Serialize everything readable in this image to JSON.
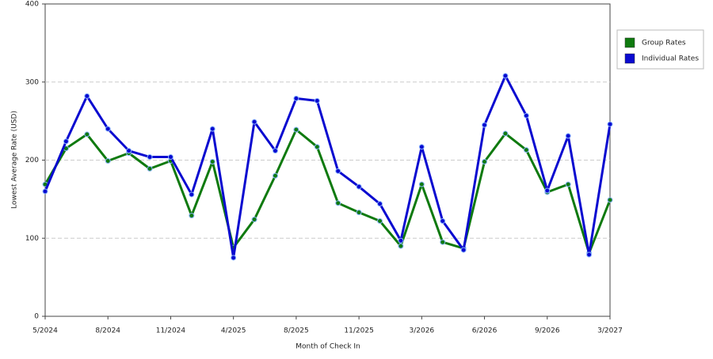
{
  "chart_data": {
    "type": "line",
    "x_label": "Month of Check In",
    "y_label": "Lowest Average Rate (USD)",
    "categories": [
      "5/2024",
      null,
      null,
      "8/2024",
      null,
      null,
      "11/2024",
      null,
      null,
      "4/2025",
      null,
      null,
      "8/2025",
      null,
      null,
      "11/2025",
      null,
      null,
      "3/2026",
      null,
      null,
      "6/2026",
      null,
      null,
      "9/2026",
      null,
      null,
      "3/2027"
    ],
    "series": [
      {
        "name": "Group Rates",
        "color": "#0f7a0f",
        "values": [
          169,
          215,
          233,
          199,
          209,
          189,
          199,
          129,
          198,
          88,
          124,
          180,
          239,
          217,
          145,
          133,
          122,
          90,
          169,
          95,
          87,
          198,
          234,
          213,
          159,
          169,
          81,
          149
        ]
      },
      {
        "name": "Individual Rates",
        "color": "#0a0ad0",
        "values": [
          160,
          224,
          282,
          240,
          212,
          204,
          204,
          156,
          240,
          75,
          249,
          212,
          279,
          276,
          186,
          166,
          144,
          97,
          217,
          122,
          85,
          245,
          308,
          257,
          161,
          231,
          79,
          246
        ]
      }
    ],
    "ylim": [
      0,
      400
    ],
    "yticks": [
      0,
      100,
      200,
      300,
      400
    ],
    "grid": true,
    "legend": "right"
  }
}
